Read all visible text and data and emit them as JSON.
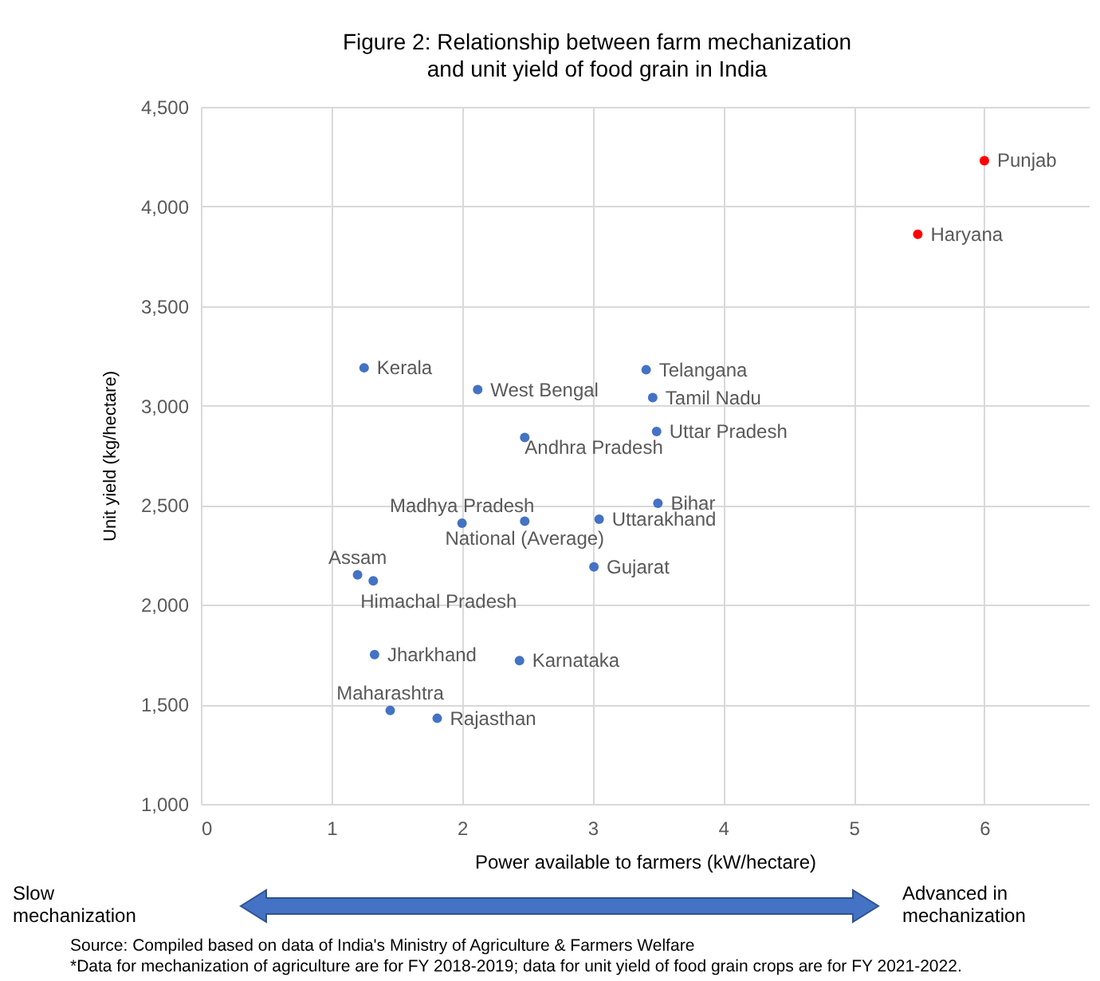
{
  "chart_data": {
    "type": "scatter",
    "title": "Figure 2: Relationship between farm mechanization\nand unit yield of food grain in India",
    "xlabel": "Power available to farmers (kW/hectare)",
    "ylabel": "Unit yield (kg/hectare)",
    "x": [
      6.0,
      5.49,
      1.25,
      2.12,
      3.41,
      3.46,
      3.49,
      2.48,
      3.5,
      2.0,
      2.48,
      3.05,
      3.01,
      1.2,
      1.32,
      1.33,
      2.44,
      1.45,
      1.81
    ],
    "series": [
      {
        "values": [
          4230,
          3860,
          3190,
          3080,
          3180,
          3040,
          2870,
          2840,
          2510,
          2410,
          2420,
          2430,
          2190,
          2150,
          2120,
          1750,
          1720,
          1470,
          1430
        ],
        "colors": [
          "#ff0000",
          "#ff0000",
          "#4472c4",
          "#4472c4",
          "#4472c4",
          "#4472c4",
          "#4472c4",
          "#4472c4",
          "#4472c4",
          "#4472c4",
          "#4472c4",
          "#4472c4",
          "#4472c4",
          "#4472c4",
          "#4472c4",
          "#4472c4",
          "#4472c4",
          "#4472c4",
          "#4472c4"
        ]
      }
    ],
    "xlim": [
      0,
      6.8
    ],
    "xticks": [
      0,
      1,
      2,
      3,
      4,
      5,
      6
    ],
    "ylim": [
      1000,
      4500
    ],
    "yticks": [
      {
        "value": 1000,
        "label": "1,000"
      },
      {
        "value": 1500,
        "label": "1,500"
      },
      {
        "value": 2000,
        "label": "2,000"
      },
      {
        "value": 2500,
        "label": "2,500"
      },
      {
        "value": 3000,
        "label": "3,000"
      },
      {
        "value": 3500,
        "label": "3,500"
      },
      {
        "value": 4000,
        "label": "4,000"
      },
      {
        "value": 4500,
        "label": "4,500"
      }
    ],
    "grid": true,
    "marker": "circle",
    "annotations": [
      {
        "text": "Punjab",
        "x": 6.0,
        "y": 4230
      },
      {
        "text": "Haryana",
        "x": 5.49,
        "y": 3860
      },
      {
        "text": "Kerala",
        "x": 1.25,
        "y": 3190
      },
      {
        "text": "West Bengal",
        "x": 2.12,
        "y": 3080
      },
      {
        "text": "Telangana",
        "x": 3.41,
        "y": 3180
      },
      {
        "text": "Tamil Nadu",
        "x": 3.46,
        "y": 3040
      },
      {
        "text": "Uttar Pradesh",
        "x": 3.49,
        "y": 2870
      },
      {
        "text": "Andhra Pradesh",
        "x": 2.48,
        "y": 2840
      },
      {
        "text": "Bihar",
        "x": 3.5,
        "y": 2510
      },
      {
        "text": "Madhya Pradesh",
        "x": 2.0,
        "y": 2410
      },
      {
        "text": "National (Average)",
        "x": 2.48,
        "y": 2420
      },
      {
        "text": "Uttarakhand",
        "x": 3.05,
        "y": 2430
      },
      {
        "text": "Gujarat",
        "x": 3.01,
        "y": 2190
      },
      {
        "text": "Assam",
        "x": 1.2,
        "y": 2150
      },
      {
        "text": "Himachal Pradesh",
        "x": 1.32,
        "y": 2120
      },
      {
        "text": "Jharkhand",
        "x": 1.33,
        "y": 1750
      },
      {
        "text": "Karnataka",
        "x": 2.44,
        "y": 1720
      },
      {
        "text": "Maharashtra",
        "x": 1.45,
        "y": 1470
      },
      {
        "text": "Rajasthan",
        "x": 1.81,
        "y": 1430
      },
      "Slow\nmechanization",
      "Advanced in\nmechanization",
      "Source: Compiled based on data of India's Ministry of Agriculture & Farmers Welfare",
      "*Data for mechanization of agriculture are for FY 2018-2019; data for unit yield of food grain crops are for FY 2021-2022."
    ]
  }
}
